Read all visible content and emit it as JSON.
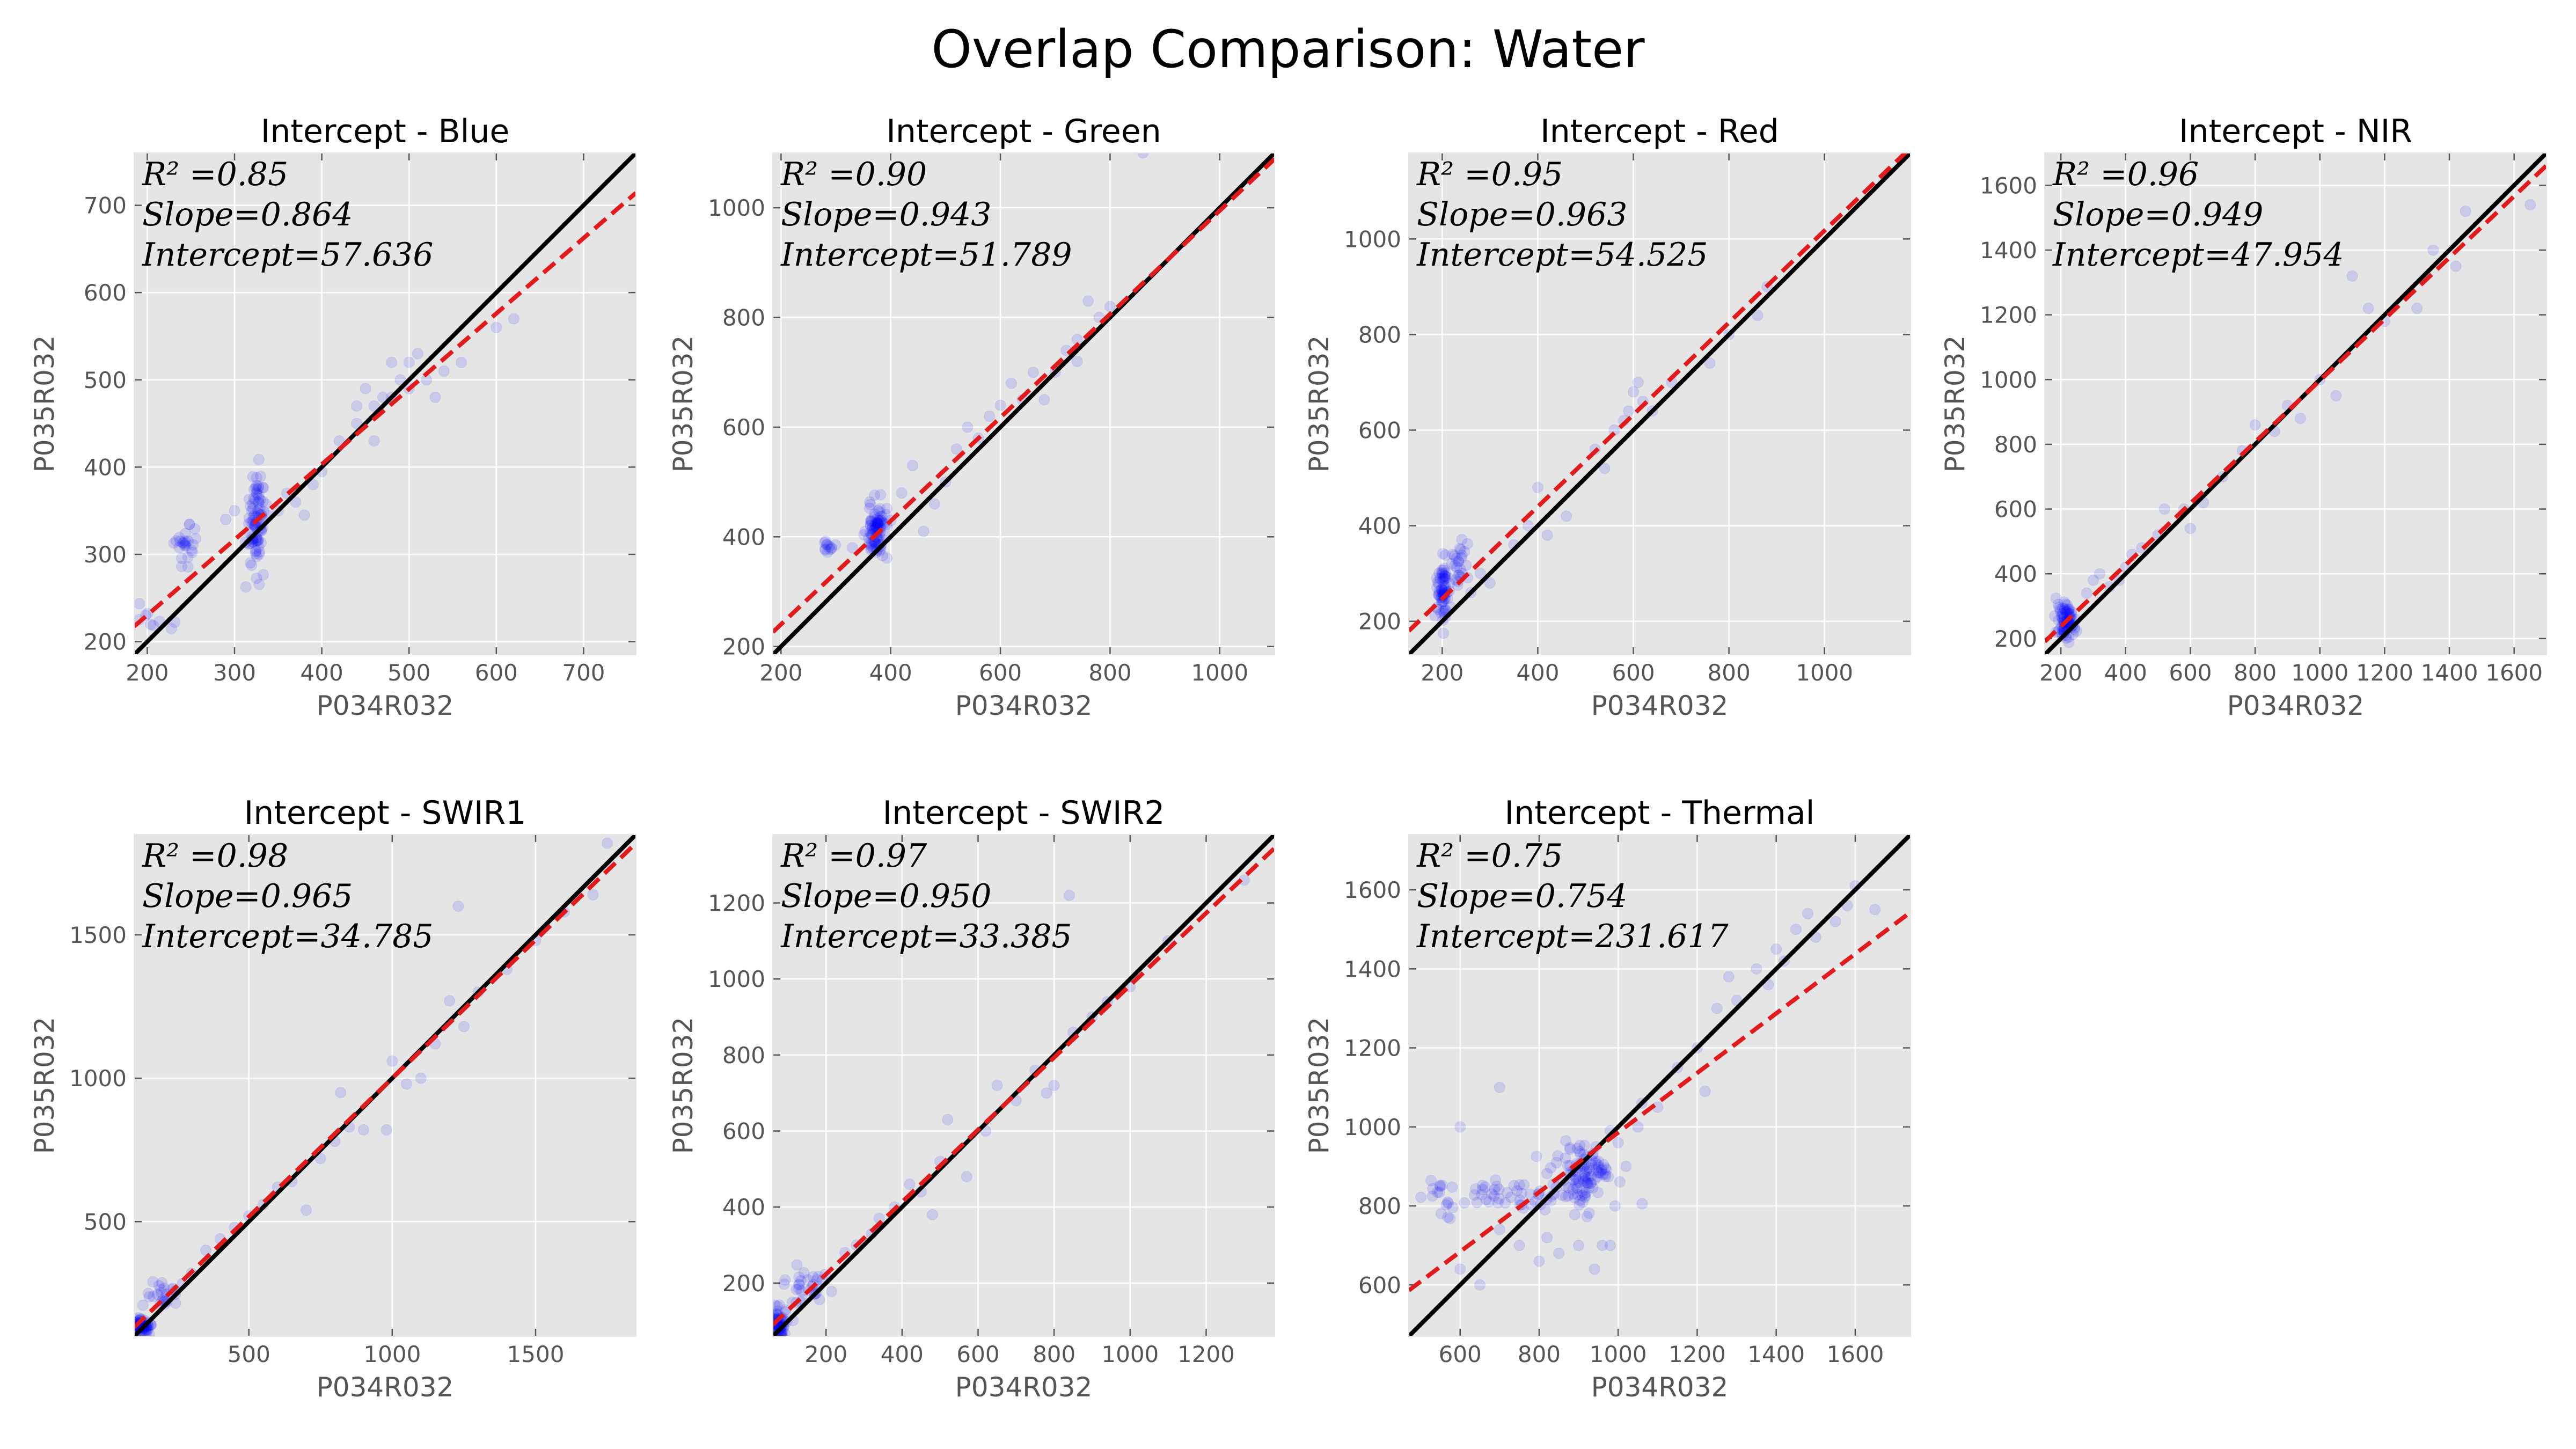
{
  "figure": {
    "title": "Overlap Comparison: Water"
  },
  "colors": {
    "points": "#0000ff",
    "fit_line": "#e31a1c",
    "identity_line": "#000000",
    "plot_background": "#e5e5e5",
    "grid": "#ffffff"
  },
  "chart_data": [
    {
      "type": "scatter",
      "title": "Intercept - Blue",
      "xlabel": "P034R032",
      "ylabel": "P035R032",
      "xlim": [
        185,
        760
      ],
      "ylim": [
        185,
        760
      ],
      "xticks": [
        200,
        300,
        400,
        500,
        600,
        700
      ],
      "yticks": [
        200,
        300,
        400,
        500,
        600,
        700
      ],
      "grid": true,
      "r2_text": "R² =0.85",
      "slope_text": "Slope=0.864",
      "intercept_text": "Intercept=57.636",
      "slope": 0.864,
      "intercept": 57.636,
      "clusters": [
        {
          "cx": 325,
          "cy": 340,
          "sx": 6,
          "sy": 28,
          "n": 90
        },
        {
          "cx": 245,
          "cy": 310,
          "sx": 6,
          "sy": 12,
          "n": 25
        },
        {
          "cx": 215,
          "cy": 225,
          "sx": 15,
          "sy": 12,
          "n": 10
        }
      ],
      "points": [
        [
          350,
          350
        ],
        [
          370,
          360
        ],
        [
          390,
          380
        ],
        [
          400,
          395
        ],
        [
          420,
          430
        ],
        [
          440,
          450
        ],
        [
          450,
          490
        ],
        [
          460,
          470
        ],
        [
          470,
          480
        ],
        [
          480,
          520
        ],
        [
          490,
          500
        ],
        [
          500,
          520
        ],
        [
          510,
          530
        ],
        [
          520,
          500
        ],
        [
          540,
          510
        ],
        [
          560,
          520
        ],
        [
          600,
          560
        ],
        [
          620,
          570
        ],
        [
          480,
          480
        ],
        [
          460,
          430
        ],
        [
          380,
          345
        ],
        [
          360,
          370
        ],
        [
          300,
          350
        ],
        [
          290,
          340
        ],
        [
          500,
          490
        ],
        [
          530,
          480
        ],
        [
          440,
          470
        ]
      ]
    },
    {
      "type": "scatter",
      "title": "Intercept - Green",
      "xlabel": "P034R032",
      "ylabel": "P035R032",
      "xlim": [
        185,
        1100
      ],
      "ylim": [
        185,
        1100
      ],
      "xticks": [
        200,
        400,
        600,
        800,
        1000
      ],
      "yticks": [
        200,
        400,
        600,
        800,
        1000
      ],
      "grid": true,
      "r2_text": "R² =0.90",
      "slope_text": "Slope=0.943",
      "intercept_text": "Intercept=51.789",
      "slope": 0.943,
      "intercept": 51.789,
      "clusters": [
        {
          "cx": 375,
          "cy": 410,
          "sx": 10,
          "sy": 25,
          "n": 90
        },
        {
          "cx": 285,
          "cy": 380,
          "sx": 6,
          "sy": 8,
          "n": 12
        }
      ],
      "points": [
        [
          420,
          480
        ],
        [
          440,
          530
        ],
        [
          460,
          410
        ],
        [
          500,
          500
        ],
        [
          520,
          560
        ],
        [
          560,
          580
        ],
        [
          600,
          640
        ],
        [
          620,
          680
        ],
        [
          640,
          650
        ],
        [
          680,
          650
        ],
        [
          700,
          700
        ],
        [
          720,
          740
        ],
        [
          740,
          720
        ],
        [
          760,
          830
        ],
        [
          780,
          800
        ],
        [
          800,
          820
        ],
        [
          860,
          1100
        ],
        [
          580,
          620
        ],
        [
          540,
          600
        ],
        [
          480,
          460
        ],
        [
          660,
          700
        ],
        [
          740,
          760
        ],
        [
          330,
          380
        ],
        [
          400,
          430
        ]
      ]
    },
    {
      "type": "scatter",
      "title": "Intercept - Red",
      "xlabel": "P034R032",
      "ylabel": "P035R032",
      "xlim": [
        130,
        1180
      ],
      "ylim": [
        130,
        1180
      ],
      "xticks": [
        200,
        400,
        600,
        800,
        1000
      ],
      "yticks": [
        200,
        400,
        600,
        800,
        1000
      ],
      "grid": true,
      "r2_text": "R² =0.95",
      "slope_text": "Slope=0.963",
      "intercept_text": "Intercept=54.525",
      "slope": 0.963,
      "intercept": 54.525,
      "clusters": [
        {
          "cx": 200,
          "cy": 260,
          "sx": 6,
          "sy": 30,
          "n": 70
        },
        {
          "cx": 235,
          "cy": 320,
          "sx": 8,
          "sy": 25,
          "n": 25
        }
      ],
      "points": [
        [
          260,
          260
        ],
        [
          300,
          280
        ],
        [
          350,
          360
        ],
        [
          380,
          400
        ],
        [
          400,
          480
        ],
        [
          420,
          380
        ],
        [
          460,
          420
        ],
        [
          540,
          520
        ],
        [
          560,
          600
        ],
        [
          580,
          620
        ],
        [
          600,
          680
        ],
        [
          610,
          700
        ],
        [
          620,
          660
        ],
        [
          640,
          640
        ],
        [
          680,
          700
        ],
        [
          760,
          740
        ],
        [
          800,
          800
        ],
        [
          860,
          840
        ],
        [
          880,
          900
        ],
        [
          520,
          560
        ],
        [
          590,
          640
        ],
        [
          280,
          300
        ]
      ]
    },
    {
      "type": "scatter",
      "title": "Intercept - NIR",
      "xlabel": "P034R032",
      "ylabel": "P035R032",
      "xlim": [
        150,
        1700
      ],
      "ylim": [
        150,
        1700
      ],
      "xticks": [
        200,
        400,
        600,
        800,
        1000,
        1200,
        1400,
        1600
      ],
      "yticks": [
        200,
        400,
        600,
        800,
        1000,
        1200,
        1400,
        1600
      ],
      "grid": true,
      "r2_text": "R² =0.96",
      "slope_text": "Slope=0.949",
      "intercept_text": "Intercept=47.954",
      "slope": 0.949,
      "intercept": 47.954,
      "clusters": [
        {
          "cx": 215,
          "cy": 250,
          "sx": 15,
          "sy": 30,
          "n": 80
        }
      ],
      "points": [
        [
          280,
          340
        ],
        [
          300,
          380
        ],
        [
          320,
          400
        ],
        [
          350,
          360
        ],
        [
          400,
          420
        ],
        [
          420,
          460
        ],
        [
          450,
          480
        ],
        [
          500,
          520
        ],
        [
          520,
          600
        ],
        [
          600,
          540
        ],
        [
          640,
          620
        ],
        [
          700,
          700
        ],
        [
          760,
          780
        ],
        [
          800,
          860
        ],
        [
          860,
          840
        ],
        [
          900,
          920
        ],
        [
          1000,
          1000
        ],
        [
          1050,
          950
        ],
        [
          1100,
          1320
        ],
        [
          1150,
          1220
        ],
        [
          1200,
          1180
        ],
        [
          1300,
          1220
        ],
        [
          1350,
          1400
        ],
        [
          1420,
          1350
        ],
        [
          1450,
          1520
        ],
        [
          1650,
          1540
        ],
        [
          940,
          880
        ],
        [
          580,
          600
        ],
        [
          380,
          380
        ]
      ]
    },
    {
      "type": "scatter",
      "title": "Intercept - SWIR1",
      "xlabel": "P034R032",
      "ylabel": "P035R032",
      "xlim": [
        100,
        1850
      ],
      "ylim": [
        100,
        1850
      ],
      "xticks": [
        500,
        1000,
        1500
      ],
      "yticks": [
        500,
        1000,
        1500
      ],
      "grid": true,
      "r2_text": "R² =0.98",
      "slope_text": "Slope=0.965",
      "intercept_text": "Intercept=34.785",
      "slope": 0.965,
      "intercept": 34.785,
      "clusters": [
        {
          "cx": 125,
          "cy": 135,
          "sx": 15,
          "sy": 15,
          "n": 70
        },
        {
          "cx": 220,
          "cy": 240,
          "sx": 40,
          "sy": 30,
          "n": 25
        }
      ],
      "points": [
        [
          300,
          320
        ],
        [
          350,
          400
        ],
        [
          400,
          440
        ],
        [
          450,
          480
        ],
        [
          500,
          520
        ],
        [
          550,
          560
        ],
        [
          600,
          620
        ],
        [
          650,
          640
        ],
        [
          700,
          540
        ],
        [
          750,
          720
        ],
        [
          800,
          780
        ],
        [
          850,
          830
        ],
        [
          900,
          820
        ],
        [
          1000,
          1060
        ],
        [
          1050,
          980
        ],
        [
          1100,
          1000
        ],
        [
          1150,
          1120
        ],
        [
          1200,
          1270
        ],
        [
          1230,
          1600
        ],
        [
          1250,
          1180
        ],
        [
          1300,
          1300
        ],
        [
          1400,
          1380
        ],
        [
          1500,
          1480
        ],
        [
          1600,
          1580
        ],
        [
          1700,
          1640
        ],
        [
          1750,
          1820
        ],
        [
          980,
          820
        ],
        [
          820,
          950
        ]
      ]
    },
    {
      "type": "scatter",
      "title": "Intercept - SWIR2",
      "xlabel": "P034R032",
      "ylabel": "P035R032",
      "xlim": [
        60,
        1380
      ],
      "ylim": [
        60,
        1380
      ],
      "xticks": [
        200,
        400,
        600,
        800,
        1000,
        1200
      ],
      "yticks": [
        200,
        400,
        600,
        800,
        1000,
        1200
      ],
      "grid": true,
      "r2_text": "R² =0.97",
      "slope_text": "Slope=0.950",
      "intercept_text": "Intercept=33.385",
      "slope": 0.95,
      "intercept": 33.385,
      "clusters": [
        {
          "cx": 75,
          "cy": 90,
          "sx": 10,
          "sy": 20,
          "n": 70
        },
        {
          "cx": 150,
          "cy": 190,
          "sx": 35,
          "sy": 25,
          "n": 30
        }
      ],
      "points": [
        [
          250,
          280
        ],
        [
          280,
          300
        ],
        [
          320,
          330
        ],
        [
          380,
          400
        ],
        [
          420,
          460
        ],
        [
          450,
          440
        ],
        [
          480,
          380
        ],
        [
          500,
          520
        ],
        [
          520,
          630
        ],
        [
          570,
          480
        ],
        [
          620,
          600
        ],
        [
          650,
          720
        ],
        [
          700,
          680
        ],
        [
          750,
          760
        ],
        [
          800,
          720
        ],
        [
          850,
          860
        ],
        [
          900,
          900
        ],
        [
          940,
          940
        ],
        [
          1000,
          980
        ],
        [
          840,
          1220
        ],
        [
          1300,
          1260
        ],
        [
          1100,
          1100
        ],
        [
          780,
          700
        ],
        [
          340,
          370
        ]
      ]
    },
    {
      "type": "scatter",
      "title": "Intercept - Thermal",
      "xlabel": "P034R032",
      "ylabel": "P035R032",
      "xlim": [
        470,
        1740
      ],
      "ylim": [
        470,
        1740
      ],
      "xticks": [
        600,
        800,
        1000,
        1200,
        1400,
        1600
      ],
      "yticks": [
        600,
        800,
        1000,
        1200,
        1400,
        1600
      ],
      "grid": true,
      "r2_text": "R² =0.75",
      "slope_text": "Slope=0.754",
      "intercept_text": "Intercept=231.617",
      "slope": 0.754,
      "intercept": 231.617,
      "clusters": [
        {
          "cx": 910,
          "cy": 880,
          "sx": 35,
          "sy": 40,
          "n": 110
        },
        {
          "cx": 720,
          "cy": 830,
          "sx": 90,
          "sy": 18,
          "n": 45
        },
        {
          "cx": 560,
          "cy": 815,
          "sx": 25,
          "sy": 25,
          "n": 15
        }
      ],
      "points": [
        [
          600,
          640
        ],
        [
          650,
          600
        ],
        [
          700,
          1100
        ],
        [
          700,
          740
        ],
        [
          750,
          700
        ],
        [
          800,
          660
        ],
        [
          820,
          720
        ],
        [
          850,
          680
        ],
        [
          900,
          700
        ],
        [
          940,
          640
        ],
        [
          960,
          700
        ],
        [
          980,
          700
        ],
        [
          1000,
          960
        ],
        [
          1050,
          1000
        ],
        [
          1100,
          1050
        ],
        [
          1150,
          1150
        ],
        [
          1200,
          1200
        ],
        [
          1220,
          1090
        ],
        [
          1250,
          1300
        ],
        [
          1280,
          1380
        ],
        [
          1300,
          1320
        ],
        [
          1350,
          1400
        ],
        [
          1380,
          1360
        ],
        [
          1400,
          1450
        ],
        [
          1420,
          1420
        ],
        [
          1450,
          1500
        ],
        [
          1480,
          1540
        ],
        [
          1500,
          1480
        ],
        [
          1550,
          1520
        ],
        [
          1580,
          1560
        ],
        [
          1600,
          1610
        ],
        [
          1650,
          1550
        ],
        [
          1020,
          900
        ],
        [
          1060,
          1060
        ],
        [
          980,
          990
        ],
        [
          600,
          1000
        ]
      ]
    }
  ]
}
